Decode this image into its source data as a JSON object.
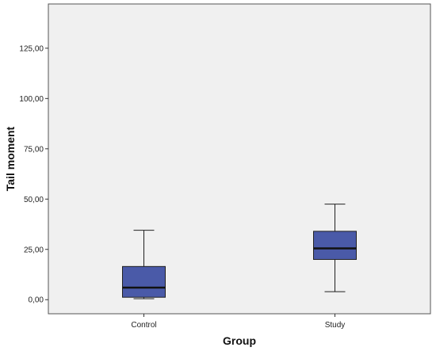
{
  "chart_data": {
    "type": "boxplot",
    "xlabel": "Group",
    "ylabel": "Tail moment",
    "ylim": [
      -7,
      147
    ],
    "y_ticks": [
      0,
      25,
      50,
      75,
      100,
      125
    ],
    "y_tick_labels": [
      "0,00",
      "25,00",
      "50,00",
      "75,00",
      "100,00",
      "125,00"
    ],
    "categories": [
      "Control",
      "Study"
    ],
    "boxes": [
      {
        "category": "Control",
        "min": 0.5,
        "q1": 1.2,
        "median": 6,
        "q3": 16.5,
        "max": 34.5
      },
      {
        "category": "Study",
        "min": 4,
        "q1": 20,
        "median": 25.5,
        "q3": 34,
        "max": 47.5
      }
    ],
    "grid": false,
    "colors": {
      "plot_background": "#f0f0f0",
      "box_fill": "#4a5aa8",
      "box_stroke": "#202020",
      "whisker": "#202020"
    }
  }
}
